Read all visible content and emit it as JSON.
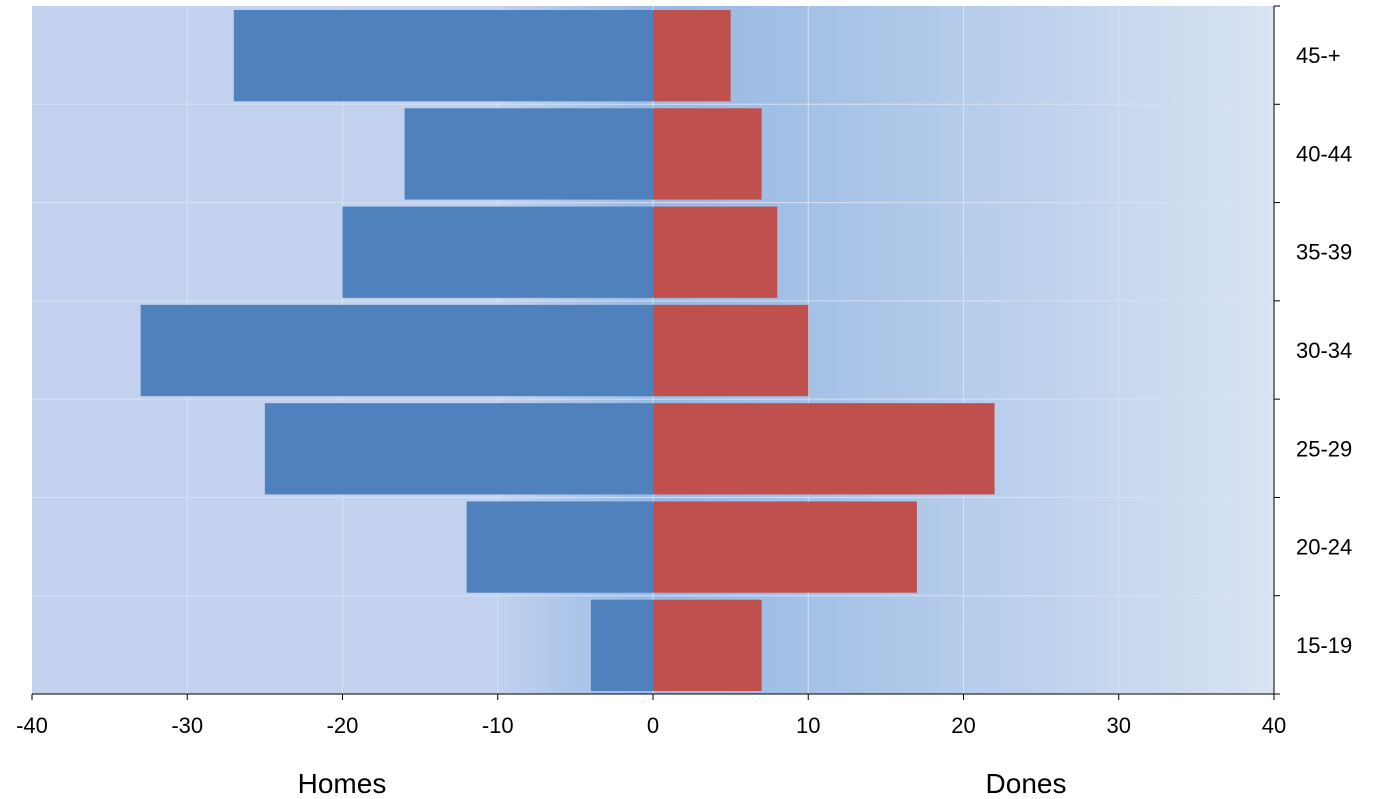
{
  "chart_data": {
    "type": "bar",
    "orientation": "horizontal",
    "layout": "population-pyramid",
    "categories": [
      "15-19",
      "20-24",
      "25-29",
      "30-34",
      "35-39",
      "40-44",
      "45-+"
    ],
    "series": [
      {
        "name": "Homes",
        "values": [
          -4,
          -12,
          -25,
          -33,
          -20,
          -16,
          -27
        ],
        "color": "#4f81bd"
      },
      {
        "name": "Dones",
        "values": [
          7,
          17,
          22,
          10,
          8,
          7,
          5
        ],
        "color": "#c0504d"
      }
    ],
    "xlim": [
      -40,
      40
    ],
    "xticks": [
      "-40",
      "-30",
      "-20",
      "-10",
      "0",
      "10",
      "20",
      "30",
      "40"
    ],
    "grid": true,
    "category_axis": "right",
    "colors": {
      "plot_background_left": "#c1d1ee",
      "plot_background_mid": "#98b9e4",
      "plot_background_right": "#d9e3f3",
      "gridline": "#d6e1f3"
    }
  },
  "labels": {
    "left": "Homes",
    "right": "Dones"
  }
}
